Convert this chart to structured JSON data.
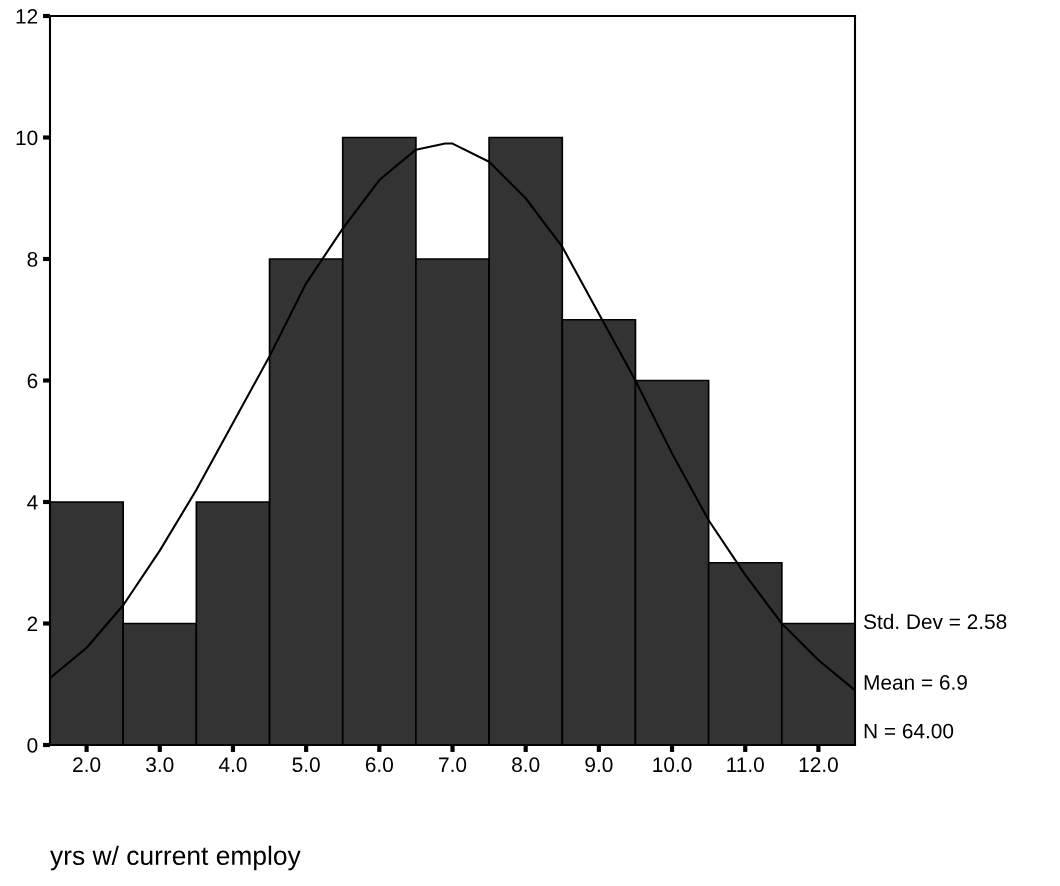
{
  "chart_data": {
    "type": "histogram",
    "xlabel": "yrs w/ current employ",
    "bins": [
      1.5,
      2.5,
      3.5,
      4.5,
      5.5,
      6.5,
      7.5,
      8.5,
      9.5,
      10.5,
      11.5,
      12.5
    ],
    "values": [
      4,
      2,
      4,
      8,
      10,
      8,
      10,
      7,
      6,
      3,
      2
    ],
    "color": "#333333",
    "series": [
      {
        "type": "line",
        "color": "#000000",
        "x": [
          1.5,
          2.0,
          2.5,
          3.0,
          3.5,
          4.0,
          4.5,
          5.0,
          5.5,
          6.0,
          6.5,
          6.9,
          7.0,
          7.5,
          8.0,
          8.5,
          9.0,
          9.5,
          10.0,
          10.5,
          11.0,
          11.5,
          12.0,
          12.5
        ],
        "values": [
          1.1,
          1.6,
          2.3,
          3.2,
          4.2,
          5.3,
          6.4,
          7.6,
          8.5,
          9.3,
          9.8,
          9.9,
          9.9,
          9.6,
          9.0,
          8.2,
          7.1,
          6.0,
          4.8,
          3.7,
          2.8,
          2.0,
          1.4,
          0.9
        ]
      }
    ],
    "xlim": [
      1.5,
      12.5
    ],
    "xticks": [
      {
        "value": 2,
        "label": "2.0"
      },
      {
        "value": 3,
        "label": "3.0"
      },
      {
        "value": 4,
        "label": "4.0"
      },
      {
        "value": 5,
        "label": "5.0"
      },
      {
        "value": 6,
        "label": "6.0"
      },
      {
        "value": 7,
        "label": "7.0"
      },
      {
        "value": 8,
        "label": "8.0"
      },
      {
        "value": 9,
        "label": "9.0"
      },
      {
        "value": 10,
        "label": "10.0"
      },
      {
        "value": 11,
        "label": "11.0"
      },
      {
        "value": 12,
        "label": "12.0"
      }
    ],
    "ylim": [
      0,
      12
    ],
    "yticks": [
      0,
      2,
      4,
      6,
      8,
      10,
      12
    ],
    "grid": false,
    "legend": false,
    "annotations": [
      "Std. Dev = 2.58",
      "Mean = 6.9",
      "N = 64.00"
    ]
  }
}
